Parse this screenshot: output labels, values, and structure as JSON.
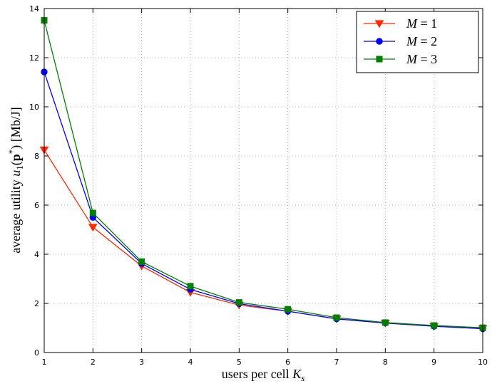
{
  "chart_data": {
    "type": "line",
    "x": [
      1,
      2,
      3,
      4,
      5,
      6,
      7,
      8,
      9,
      10
    ],
    "xlim": [
      1,
      10
    ],
    "ylim": [
      0,
      14
    ],
    "xticks": [
      1,
      2,
      3,
      4,
      5,
      6,
      7,
      8,
      9,
      10
    ],
    "yticks": [
      0,
      2,
      4,
      6,
      8,
      10,
      12,
      14
    ],
    "grid": true,
    "legend_position": "top-right",
    "xlabel": {
      "plain": "users per cell ",
      "math": "K",
      "sub": "s"
    },
    "ylabel": {
      "plain": "average utility ",
      "math": "u",
      "sub": "1",
      "open": "(",
      "bold": "p",
      "sup": "*",
      "close": ") [Mb/J]"
    },
    "series": [
      {
        "name": "M = 1",
        "legend": {
          "var": "M",
          "rest": " = 1"
        },
        "color": "#ff2a00",
        "marker": "triangle-down",
        "values": [
          8.25,
          5.1,
          3.52,
          2.45,
          1.93,
          1.68,
          1.37,
          1.2,
          1.07,
          0.97
        ]
      },
      {
        "name": "M = 2",
        "legend": {
          "var": "M",
          "rest": " = 2"
        },
        "color": "#0000ff",
        "marker": "circle",
        "values": [
          11.42,
          5.5,
          3.62,
          2.57,
          1.99,
          1.68,
          1.37,
          1.2,
          1.07,
          0.97
        ]
      },
      {
        "name": "M = 3",
        "legend": {
          "var": "M",
          "rest": " = 3"
        },
        "color": "#008000",
        "marker": "square",
        "values": [
          13.52,
          5.68,
          3.7,
          2.7,
          2.04,
          1.76,
          1.42,
          1.22,
          1.1,
          1.01
        ]
      }
    ]
  }
}
